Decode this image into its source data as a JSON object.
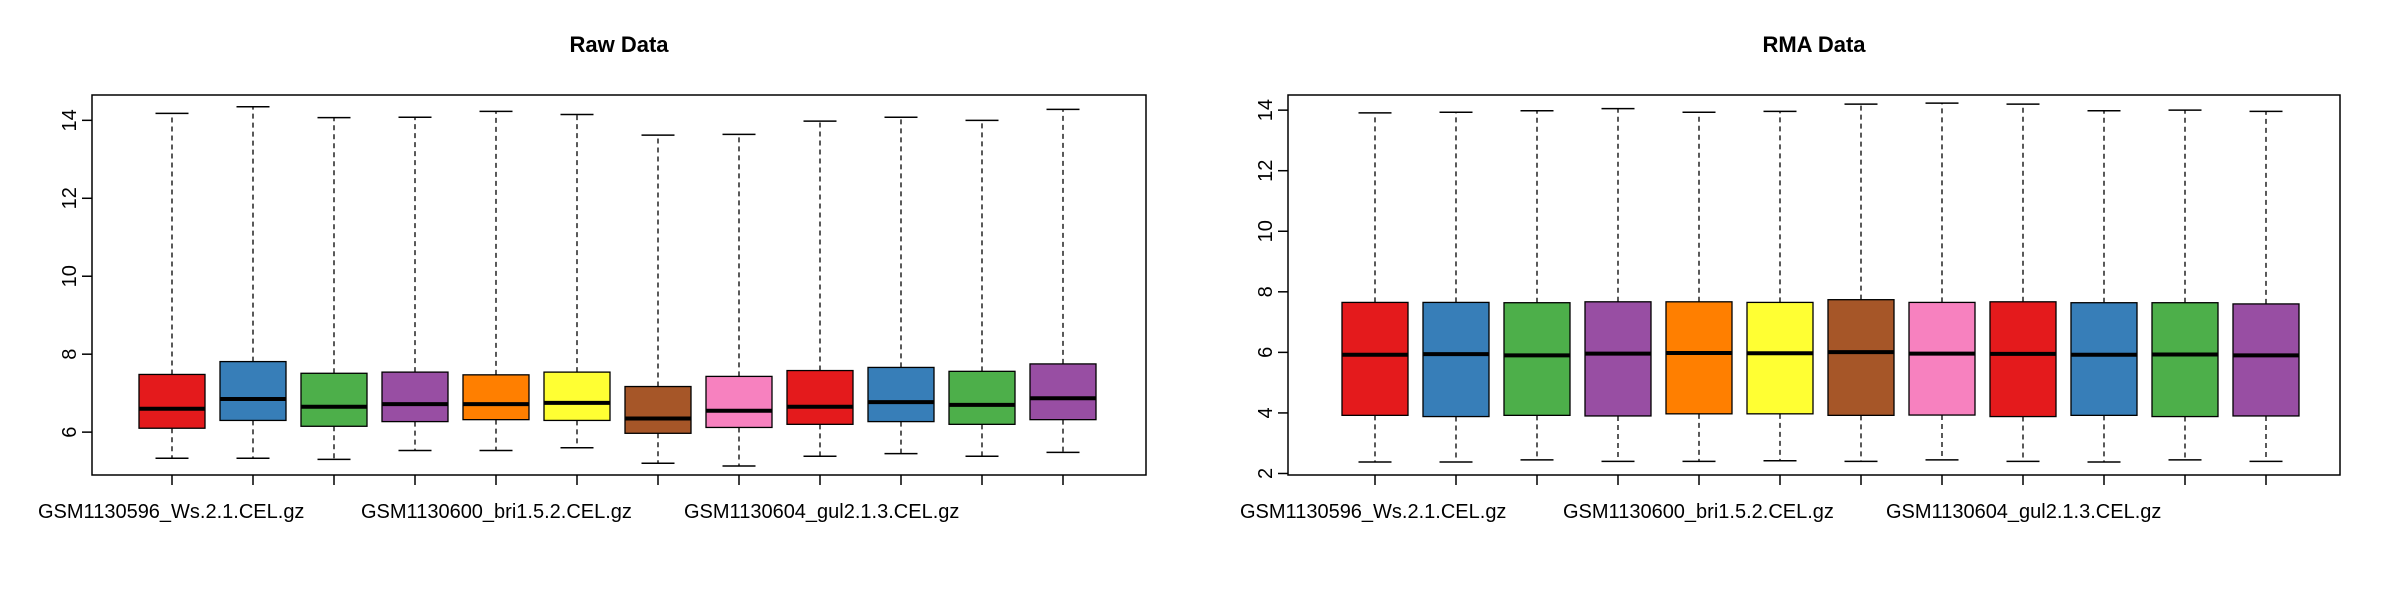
{
  "chart_data": [
    {
      "type": "boxplot",
      "title": "Raw Data",
      "ylim": [
        4.9,
        14.65
      ],
      "yticks": [
        6,
        8,
        10,
        12,
        14
      ],
      "shown_category_labels": [
        "GSM1130596_Ws.2.1.CEL.gz",
        "GSM1130600_bri1.5.2.CEL.gz",
        "GSM1130604_gul2.1.3.CEL.gz"
      ],
      "boxes": [
        {
          "color": "#E41A1C",
          "min": 5.33,
          "q1": 6.1,
          "median": 6.6,
          "q3": 7.48,
          "max": 14.18
        },
        {
          "color": "#377EB8",
          "min": 5.33,
          "q1": 6.3,
          "median": 6.85,
          "q3": 7.81,
          "max": 14.35
        },
        {
          "color": "#4DAF4A",
          "min": 5.3,
          "q1": 6.15,
          "median": 6.65,
          "q3": 7.51,
          "max": 14.07
        },
        {
          "color": "#984EA3",
          "min": 5.53,
          "q1": 6.27,
          "median": 6.72,
          "q3": 7.54,
          "max": 14.08
        },
        {
          "color": "#FF7F00",
          "min": 5.53,
          "q1": 6.32,
          "median": 6.72,
          "q3": 7.47,
          "max": 14.23
        },
        {
          "color": "#FFFF33",
          "min": 5.6,
          "q1": 6.3,
          "median": 6.75,
          "q3": 7.54,
          "max": 14.15
        },
        {
          "color": "#A65628",
          "min": 5.2,
          "q1": 5.97,
          "median": 6.35,
          "q3": 7.17,
          "max": 13.62
        },
        {
          "color": "#F781BF",
          "min": 5.13,
          "q1": 6.12,
          "median": 6.55,
          "q3": 7.43,
          "max": 13.64
        },
        {
          "color": "#E41A1C",
          "min": 5.38,
          "q1": 6.2,
          "median": 6.65,
          "q3": 7.58,
          "max": 13.98
        },
        {
          "color": "#377EB8",
          "min": 5.45,
          "q1": 6.27,
          "median": 6.77,
          "q3": 7.66,
          "max": 14.08
        },
        {
          "color": "#4DAF4A",
          "min": 5.38,
          "q1": 6.2,
          "median": 6.7,
          "q3": 7.56,
          "max": 14.0
        },
        {
          "color": "#984EA3",
          "min": 5.48,
          "q1": 6.32,
          "median": 6.87,
          "q3": 7.75,
          "max": 14.28
        }
      ]
    },
    {
      "type": "boxplot",
      "title": "RMA Data",
      "ylim": [
        1.95,
        14.5
      ],
      "yticks": [
        2,
        4,
        6,
        8,
        10,
        12,
        14
      ],
      "shown_category_labels": [
        "GSM1130596_Ws.2.1.CEL.gz",
        "GSM1130600_bri1.5.2.CEL.gz",
        "GSM1130604_gul2.1.3.CEL.gz"
      ],
      "boxes": [
        {
          "color": "#E41A1C",
          "min": 2.38,
          "q1": 3.92,
          "median": 5.92,
          "q3": 7.65,
          "max": 13.91
        },
        {
          "color": "#377EB8",
          "min": 2.38,
          "q1": 3.88,
          "median": 5.94,
          "q3": 7.65,
          "max": 13.93
        },
        {
          "color": "#4DAF4A",
          "min": 2.45,
          "q1": 3.92,
          "median": 5.9,
          "q3": 7.64,
          "max": 13.98
        },
        {
          "color": "#984EA3",
          "min": 2.4,
          "q1": 3.9,
          "median": 5.96,
          "q3": 7.67,
          "max": 14.05
        },
        {
          "color": "#FF7F00",
          "min": 2.4,
          "q1": 3.97,
          "median": 5.98,
          "q3": 7.67,
          "max": 13.93
        },
        {
          "color": "#FFFF33",
          "min": 2.42,
          "q1": 3.97,
          "median": 5.97,
          "q3": 7.65,
          "max": 13.96
        },
        {
          "color": "#A65628",
          "min": 2.4,
          "q1": 3.92,
          "median": 6.01,
          "q3": 7.74,
          "max": 14.2
        },
        {
          "color": "#F781BF",
          "min": 2.45,
          "q1": 3.93,
          "median": 5.96,
          "q3": 7.65,
          "max": 14.23
        },
        {
          "color": "#E41A1C",
          "min": 2.4,
          "q1": 3.88,
          "median": 5.95,
          "q3": 7.67,
          "max": 14.2
        },
        {
          "color": "#377EB8",
          "min": 2.38,
          "q1": 3.92,
          "median": 5.92,
          "q3": 7.64,
          "max": 13.98
        },
        {
          "color": "#4DAF4A",
          "min": 2.45,
          "q1": 3.88,
          "median": 5.93,
          "q3": 7.64,
          "max": 14.0
        },
        {
          "color": "#984EA3",
          "min": 2.4,
          "q1": 3.9,
          "median": 5.9,
          "q3": 7.6,
          "max": 13.96
        }
      ]
    }
  ]
}
